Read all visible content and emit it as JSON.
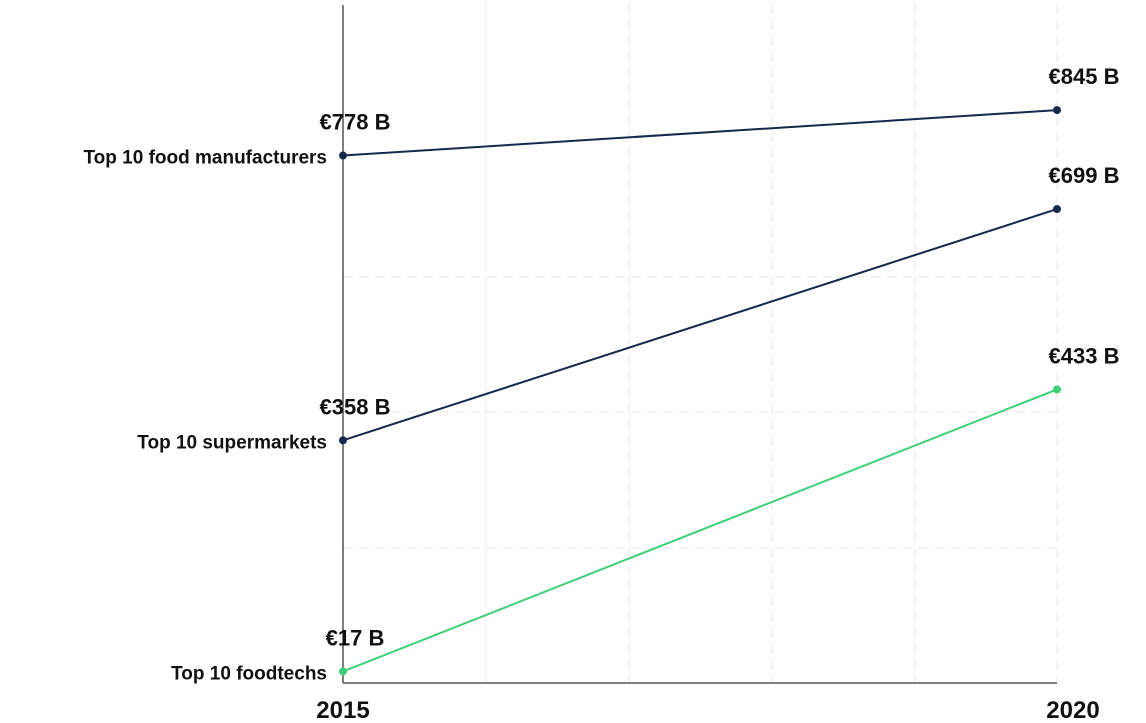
{
  "chart_data": {
    "type": "line",
    "x": [
      "2015",
      "2020"
    ],
    "series": [
      {
        "name": "Top 10 food manufacturers",
        "values": [
          778,
          845
        ],
        "value_labels": [
          "€778 B",
          "€845 B"
        ],
        "color": "#16294a"
      },
      {
        "name": "Top 10 supermarkets",
        "values": [
          358,
          699
        ],
        "value_labels": [
          "€358 B",
          "€699 B"
        ],
        "color": "#16294a"
      },
      {
        "name": "Top 10 foodtechs",
        "values": [
          17,
          433
        ],
        "value_labels": [
          "€17 B",
          "€433 B"
        ],
        "color": "#3ecf78"
      }
    ],
    "xlabel": "",
    "ylabel": "",
    "grid": true,
    "legend": "none"
  }
}
